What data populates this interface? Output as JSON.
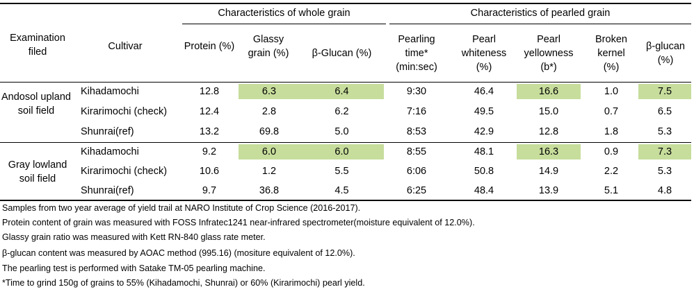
{
  "table": {
    "group_headers": {
      "whole": "Characteristics of whole grain",
      "pearled": "Characteristics of pearled grain"
    },
    "columns": {
      "field": "Examination filed",
      "cultivar": "Cultivar",
      "protein": "Protein (%)",
      "glassy": "Glassy grain (%)",
      "bglucan_whole": "β-Glucan (%)",
      "pearling_time": "Pearling time* (min:sec)",
      "whiteness": "Pearl whiteness (%)",
      "yellowness": "Pearl yellowness (b*)",
      "broken": "Broken kernel (%)",
      "bglucan_pearl": "β-glucan (%)"
    },
    "groups": [
      {
        "field": "Andosol upland soil field",
        "rows": [
          {
            "cultivar": "Kihadamochi",
            "protein": "12.8",
            "glassy": "6.3",
            "bglucan_whole": "6.4",
            "pearling_time": "9:30",
            "whiteness": "46.4",
            "yellowness": "16.6",
            "broken": "1.0",
            "bglucan_pearl": "7.5"
          },
          {
            "cultivar": "Kirarimochi (check)",
            "protein": "12.4",
            "glassy": "2.8",
            "bglucan_whole": "6.2",
            "pearling_time": "7:16",
            "whiteness": "49.5",
            "yellowness": "15.0",
            "broken": "0.7",
            "bglucan_pearl": "6.5"
          },
          {
            "cultivar": "Shunrai(ref)",
            "protein": "13.2",
            "glassy": "69.8",
            "bglucan_whole": "5.0",
            "pearling_time": "8:53",
            "whiteness": "42.9",
            "yellowness": "12.8",
            "broken": "1.8",
            "bglucan_pearl": "5.3"
          }
        ]
      },
      {
        "field": "Gray lowland soil field",
        "rows": [
          {
            "cultivar": "Kihadamochi",
            "protein": "9.2",
            "glassy": "6.0",
            "bglucan_whole": "6.0",
            "pearling_time": "8:55",
            "whiteness": "48.1",
            "yellowness": "16.3",
            "broken": "0.9",
            "bglucan_pearl": "7.3"
          },
          {
            "cultivar": "Kirarimochi (check)",
            "protein": "10.6",
            "glassy": "1.2",
            "bglucan_whole": "5.5",
            "pearling_time": "6:06",
            "whiteness": "50.8",
            "yellowness": "14.9",
            "broken": "2.2",
            "bglucan_pearl": "5.3"
          },
          {
            "cultivar": "Shunrai(ref)",
            "protein": "9.7",
            "glassy": "36.8",
            "bglucan_whole": "4.5",
            "pearling_time": "6:25",
            "whiteness": "48.4",
            "yellowness": "13.9",
            "broken": "5.1",
            "bglucan_pearl": "4.8"
          }
        ]
      }
    ],
    "highlight_color": "#c7dd9c"
  },
  "notes": [
    "Samples from two year average of yield trail at NARO Institute of Crop Science (2016-2017).",
    "Protein content of grain was measured with FOSS Infratec1241 near-infrared spectrometer(moisture equivalent of 12.0%).",
    "Glassy grain ratio was measured with Kett RN-840 glass rate meter.",
    "β-glucan content was measured by AOAC method (995.16) (mositure equivalent of 12.0%).",
    "The pearling test is performed with Satake TM-05 pearling machine.",
    "*Time to grind 150g of grains to 55% (Kihadamochi, Shunrai) or 60% (Kirarimochi) pearl yield."
  ]
}
